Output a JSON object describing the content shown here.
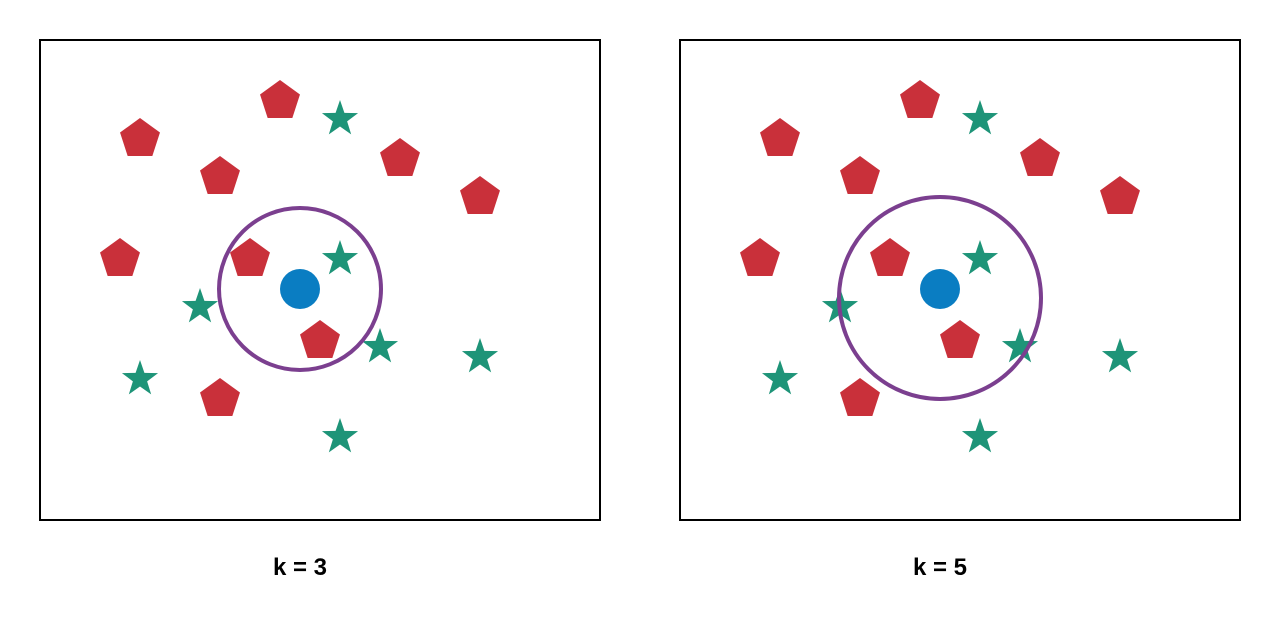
{
  "colors": {
    "pentagon": "#c9303a",
    "star": "#1e9478",
    "query": "#0a7dc2",
    "neighborhood_circle": "#7b3f8f",
    "frame": "#000000",
    "background": "#ffffff"
  },
  "panels": [
    {
      "caption": "k = 3",
      "k": 3
    },
    {
      "caption": "k = 5",
      "k": 5
    }
  ],
  "point_classes": {
    "pentagon": "red-pentagon-icon",
    "star": "green-star-icon",
    "query": "blue-circle-icon"
  }
}
